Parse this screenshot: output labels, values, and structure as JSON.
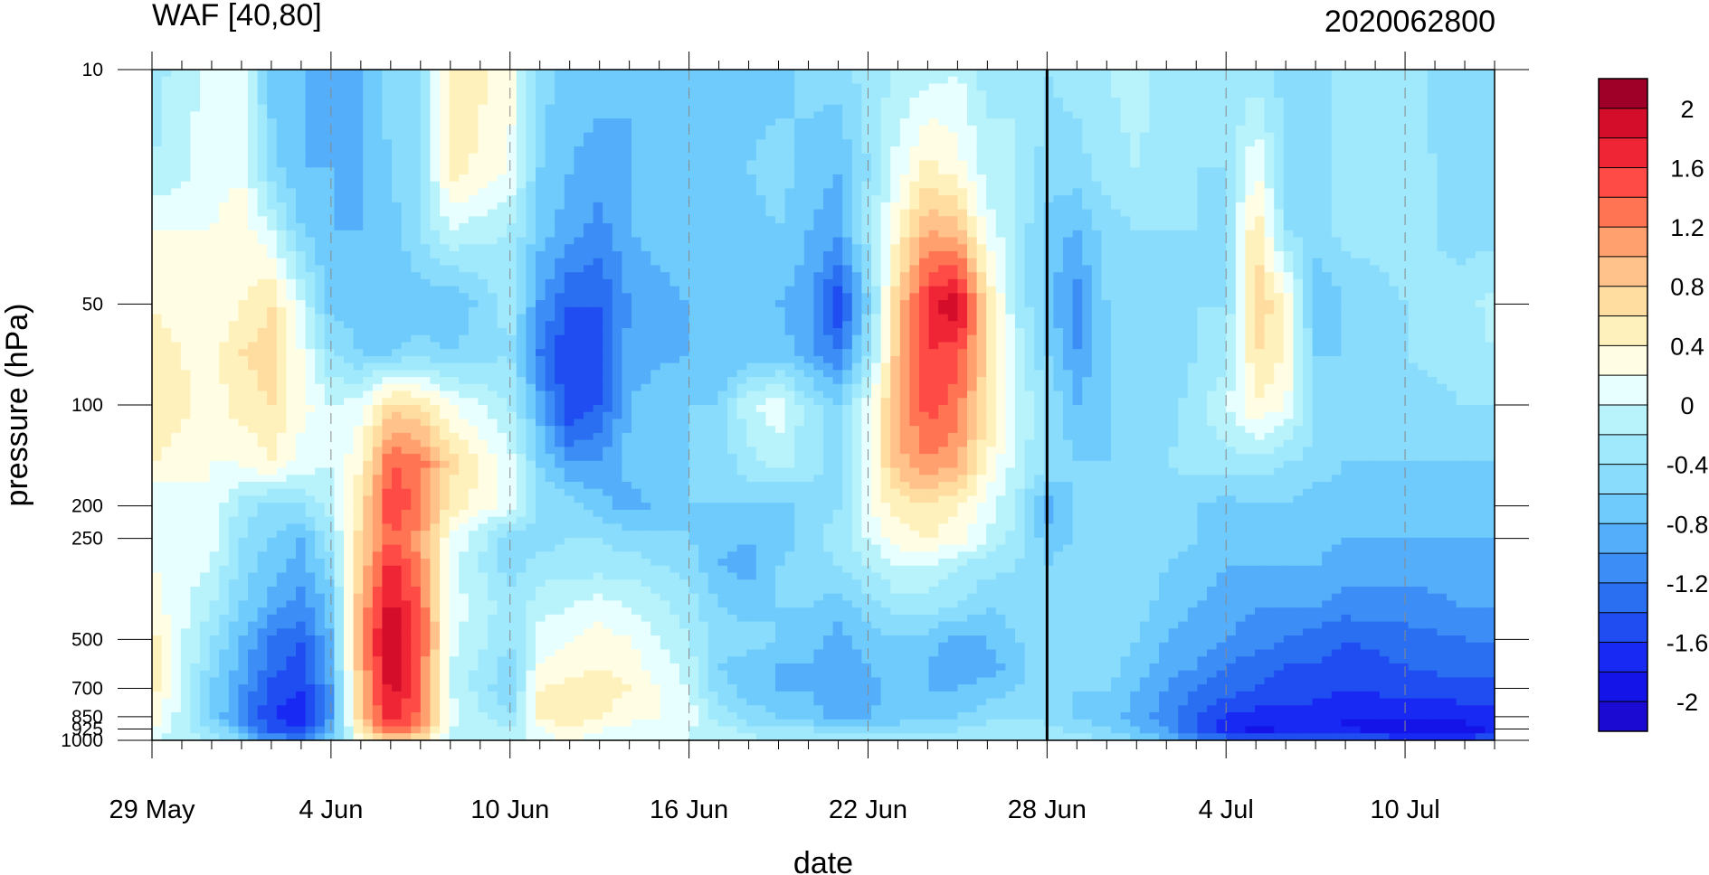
{
  "chart_data": {
    "type": "heatmap",
    "title": "WAF [40,80]",
    "subtitle": "2020062800",
    "xlabel": "date",
    "ylabel": "pressure (hPa)",
    "x_dates": [
      "29 May",
      "4 Jun",
      "10 Jun",
      "16 Jun",
      "22 Jun",
      "28 Jun",
      "4 Jul",
      "10 Jul"
    ],
    "x_range_days": [
      0,
      45
    ],
    "x_major_tick_interval_days": 6,
    "marker_date_day": 30,
    "y_ticks": [
      10,
      50,
      100,
      200,
      250,
      500,
      700,
      850,
      925,
      1000
    ],
    "y_tick_labels": [
      "10",
      "50",
      "100",
      "200",
      "250",
      "500",
      "700",
      "850",
      "925",
      "1000"
    ],
    "y_scale": "log",
    "y_range": [
      10,
      1000
    ],
    "y_inverted": true,
    "colorbar": {
      "labels": [
        "2",
        "1.6",
        "1.2",
        "0.8",
        "0.4",
        "0",
        "-0.4",
        "-0.8",
        "-1.2",
        "-1.6",
        "-2"
      ],
      "min": -2.2,
      "max": 2.2,
      "step": 0.2,
      "colors": [
        "#9e0027",
        "#d40d2b",
        "#ef2535",
        "#ff4b46",
        "#ff7554",
        "#ffa06e",
        "#ffc28b",
        "#ffdc9f",
        "#fff1bc",
        "#fffde3",
        "#e8ffff",
        "#b8f2fa",
        "#a0e9fc",
        "#8adcfc",
        "#6ecbfc",
        "#55aefa",
        "#3c8ef6",
        "#2a6ff2",
        "#1f4df2",
        "#1729f2",
        "#1414e8",
        "#1a0ad2"
      ]
    },
    "grid_values": {
      "levels": [
        10,
        20,
        30,
        50,
        70,
        100,
        150,
        200,
        250,
        300,
        400,
        500,
        600,
        700,
        850,
        925,
        1000
      ],
      "days": [
        0,
        2,
        3,
        4,
        5,
        6,
        7,
        8,
        9,
        10,
        12,
        13,
        14,
        15,
        16,
        18,
        19,
        20,
        21,
        22,
        23,
        24,
        25,
        26,
        27,
        28,
        29,
        30,
        31,
        32,
        33,
        34,
        35,
        36,
        37,
        38,
        39,
        40,
        42,
        44,
        45
      ],
      "values": [
        [
          -0.3,
          0.1,
          0.1,
          -0.7,
          -0.8,
          -0.9,
          -0.8,
          -0.5,
          -0.5,
          0.6,
          0.3,
          -0.5,
          -0.7,
          -0.7,
          -0.8,
          -0.8,
          -0.7,
          -0.7,
          -0.7,
          -0.5,
          -0.5,
          -0.3,
          -0.2,
          -0.1,
          0.0,
          -0.3,
          -0.2,
          -0.4,
          -0.3,
          -0.2,
          -0.1,
          -0.3,
          -0.3,
          -0.3,
          -0.3,
          -0.5,
          -0.6,
          -0.3,
          -0.3,
          -0.6,
          -0.6
        ],
        [
          -0.2,
          0.1,
          0.2,
          -0.5,
          -0.8,
          -0.8,
          -0.8,
          -0.6,
          -0.4,
          0.5,
          0.2,
          -0.6,
          -0.8,
          -0.9,
          -0.8,
          -0.7,
          -0.6,
          -0.6,
          -0.5,
          -0.7,
          -0.8,
          -0.4,
          0.1,
          0.5,
          0.3,
          -0.1,
          -0.2,
          -0.5,
          -0.5,
          -0.3,
          -0.2,
          -0.3,
          -0.4,
          -0.4,
          0.2,
          -0.4,
          -0.5,
          -0.3,
          -0.3,
          -0.5,
          -0.6
        ],
        [
          0.2,
          0.2,
          0.3,
          0.0,
          -0.6,
          -0.8,
          -0.8,
          -0.7,
          -0.4,
          0.0,
          -0.2,
          -0.7,
          -0.9,
          -1.1,
          -0.8,
          -0.6,
          -0.6,
          -0.7,
          -0.6,
          -0.8,
          -0.9,
          -0.3,
          0.4,
          1.0,
          0.9,
          0.1,
          -0.2,
          -0.7,
          -0.8,
          -0.5,
          -0.4,
          -0.4,
          -0.4,
          -0.4,
          0.6,
          -0.4,
          -0.5,
          -0.3,
          -0.3,
          -0.5,
          -0.5
        ],
        [
          0.4,
          0.2,
          0.4,
          0.6,
          0.0,
          -0.7,
          -0.7,
          -0.8,
          -0.7,
          -0.8,
          -0.3,
          -1.0,
          -1.4,
          -1.4,
          -1.0,
          -0.8,
          -0.7,
          -0.8,
          -0.8,
          -0.9,
          -1.6,
          -0.6,
          0.8,
          1.7,
          2.0,
          0.6,
          -0.2,
          -0.7,
          -1.1,
          -0.6,
          -0.5,
          -0.6,
          -0.4,
          -0.4,
          0.8,
          0.4,
          -0.8,
          -0.6,
          -0.4,
          -0.3,
          -0.1
        ],
        [
          0.5,
          0.3,
          0.6,
          0.7,
          0.2,
          -0.4,
          -0.6,
          -0.6,
          -0.5,
          -0.6,
          -0.4,
          -1.2,
          -1.6,
          -1.5,
          -0.9,
          -0.8,
          -0.8,
          -0.8,
          -0.7,
          -0.9,
          -1.2,
          -0.4,
          0.9,
          1.6,
          1.5,
          0.7,
          -0.1,
          -0.6,
          -1.0,
          -0.6,
          -0.5,
          -0.6,
          -0.4,
          -0.3,
          0.6,
          0.4,
          -0.6,
          -0.6,
          -0.4,
          -0.3,
          -0.2
        ],
        [
          0.6,
          0.3,
          0.5,
          0.6,
          0.3,
          0.0,
          0.1,
          0.7,
          0.6,
          0.2,
          -0.2,
          -0.9,
          -1.6,
          -1.4,
          -0.8,
          -0.6,
          -0.6,
          0.0,
          0.1,
          -0.3,
          -0.6,
          0.1,
          1.0,
          1.5,
          1.3,
          0.6,
          0.0,
          -0.4,
          -0.8,
          -0.6,
          -0.5,
          -0.5,
          -0.3,
          0.0,
          0.4,
          0.2,
          -0.4,
          -0.6,
          -0.5,
          -0.4,
          -0.4
        ],
        [
          0.4,
          0.2,
          0.2,
          0.4,
          0.1,
          0.0,
          0.4,
          1.4,
          1.3,
          0.7,
          0.1,
          -0.6,
          -1.0,
          -1.0,
          -0.7,
          -0.6,
          -0.5,
          -0.3,
          -0.1,
          -0.3,
          -0.5,
          0.2,
          0.9,
          1.2,
          1.0,
          0.4,
          -0.1,
          -0.4,
          -0.6,
          -0.6,
          -0.5,
          -0.4,
          -0.3,
          -0.3,
          -0.3,
          -0.4,
          -0.5,
          -0.6,
          -0.6,
          -0.6,
          -0.6
        ],
        [
          0.0,
          0.2,
          -0.3,
          -0.5,
          -0.4,
          -0.1,
          0.6,
          1.6,
          1.3,
          0.5,
          0.1,
          -0.4,
          -0.5,
          -0.7,
          -0.9,
          -0.6,
          -0.6,
          -0.6,
          -0.7,
          -0.5,
          -0.4,
          0.2,
          0.5,
          0.6,
          0.4,
          0.1,
          -0.2,
          -0.9,
          -0.6,
          -0.5,
          -0.5,
          -0.5,
          -0.6,
          -0.7,
          -0.6,
          -0.6,
          -0.7,
          -0.7,
          -0.7,
          -0.7,
          -0.7
        ],
        [
          0.2,
          0.1,
          -0.4,
          -0.6,
          -0.8,
          -0.3,
          0.7,
          1.4,
          1.1,
          0.2,
          -0.5,
          -0.5,
          -0.4,
          -0.4,
          -0.5,
          -0.6,
          -0.7,
          -0.8,
          -0.7,
          -0.5,
          -0.3,
          0.0,
          0.3,
          0.4,
          0.3,
          0.0,
          -0.3,
          -0.7,
          -0.6,
          -0.5,
          -0.4,
          -0.5,
          -0.6,
          -0.7,
          -0.6,
          -0.7,
          -0.7,
          -0.8,
          -0.8,
          -0.8,
          -0.8
        ],
        [
          0.2,
          0.0,
          -0.5,
          -0.7,
          -0.9,
          -0.5,
          0.8,
          1.7,
          1.2,
          0.1,
          -0.5,
          -0.3,
          -0.3,
          -0.3,
          -0.3,
          -0.5,
          -0.8,
          -0.9,
          -0.6,
          -0.5,
          -0.4,
          -0.2,
          0.0,
          0.0,
          -0.2,
          -0.3,
          -0.4,
          -0.6,
          -0.5,
          -0.4,
          -0.4,
          -0.6,
          -0.7,
          -0.8,
          -0.8,
          -0.8,
          -0.8,
          -0.9,
          -0.9,
          -0.9,
          -0.9
        ],
        [
          0.3,
          -0.2,
          -0.6,
          -0.9,
          -1.1,
          -0.7,
          1.0,
          1.9,
          1.4,
          0.1,
          -0.3,
          -0.1,
          0.0,
          0.1,
          0.0,
          -0.3,
          -0.6,
          -0.7,
          -0.6,
          -0.6,
          -0.7,
          -0.5,
          -0.3,
          -0.3,
          -0.4,
          -0.6,
          -0.5,
          -0.5,
          -0.4,
          -0.4,
          -0.5,
          -0.7,
          -0.8,
          -0.9,
          -1.0,
          -1.0,
          -1.0,
          -1.1,
          -1.1,
          -1.0,
          -1.0
        ],
        [
          0.5,
          -0.4,
          -0.8,
          -1.2,
          -1.4,
          -0.8,
          1.1,
          2.1,
          1.5,
          0.1,
          -0.4,
          0.1,
          0.2,
          0.3,
          0.2,
          -0.2,
          -0.5,
          -0.5,
          -0.6,
          -0.7,
          -0.9,
          -0.7,
          -0.6,
          -0.7,
          -0.9,
          -0.8,
          -0.6,
          -0.4,
          -0.4,
          -0.4,
          -0.6,
          -0.8,
          -0.9,
          -1.0,
          -1.1,
          -1.2,
          -1.3,
          -1.4,
          -1.3,
          -1.2,
          -1.2
        ],
        [
          0.6,
          -0.5,
          -0.9,
          -1.3,
          -1.5,
          -0.9,
          1.0,
          2.0,
          1.4,
          0.0,
          -0.5,
          0.2,
          0.3,
          0.4,
          0.3,
          -0.1,
          -0.6,
          -0.7,
          -0.8,
          -0.8,
          -1.0,
          -0.8,
          -0.7,
          -0.8,
          -0.9,
          -0.9,
          -0.7,
          -0.4,
          -0.5,
          -0.5,
          -0.7,
          -0.9,
          -1.0,
          -1.2,
          -1.3,
          -1.4,
          -1.4,
          -1.5,
          -1.4,
          -1.3,
          -1.3
        ],
        [
          0.5,
          -0.6,
          -1.0,
          -1.5,
          -1.6,
          -1.0,
          0.9,
          1.9,
          1.4,
          0.0,
          -0.6,
          0.4,
          0.5,
          0.5,
          0.4,
          0.0,
          -0.5,
          -0.7,
          -0.8,
          -0.8,
          -1.0,
          -0.9,
          -0.7,
          -0.8,
          -0.8,
          -0.7,
          -0.6,
          -0.5,
          -0.6,
          -0.6,
          -0.8,
          -1.0,
          -1.2,
          -1.3,
          -1.4,
          -1.5,
          -1.5,
          -1.6,
          -1.5,
          -1.5,
          -1.5
        ],
        [
          0.4,
          -0.6,
          -1.1,
          -1.6,
          -1.7,
          -1.0,
          0.8,
          1.8,
          1.3,
          0.1,
          -0.4,
          0.4,
          0.6,
          0.4,
          0.3,
          0.1,
          -0.3,
          -0.5,
          -0.6,
          -0.7,
          -0.9,
          -0.8,
          -0.7,
          -0.7,
          -0.6,
          -0.5,
          -0.5,
          -0.5,
          -0.6,
          -0.7,
          -0.9,
          -1.1,
          -1.4,
          -1.6,
          -1.7,
          -1.7,
          -1.7,
          -1.8,
          -1.8,
          -1.7,
          -1.7
        ],
        [
          0.2,
          -0.4,
          -0.9,
          -1.5,
          -1.6,
          -0.9,
          0.6,
          1.5,
          1.1,
          0.0,
          -0.2,
          0.2,
          0.4,
          0.2,
          0.1,
          0.0,
          -0.1,
          -0.3,
          -0.4,
          -0.4,
          -0.6,
          -0.5,
          -0.5,
          -0.5,
          -0.4,
          -0.3,
          -0.3,
          -0.3,
          -0.5,
          -0.6,
          -0.8,
          -1.0,
          -1.4,
          -1.7,
          -1.9,
          -1.8,
          -1.8,
          -1.8,
          -1.9,
          -1.9,
          -1.8
        ],
        [
          0.0,
          -0.2,
          -0.6,
          -1.0,
          -1.1,
          -0.6,
          0.3,
          0.8,
          0.6,
          0.0,
          -0.1,
          0.1,
          0.2,
          0.1,
          0.1,
          0.0,
          0.0,
          -0.1,
          -0.2,
          -0.2,
          -0.3,
          -0.3,
          -0.3,
          -0.3,
          -0.2,
          -0.2,
          -0.2,
          -0.2,
          -0.3,
          -0.4,
          -0.6,
          -0.8,
          -1.1,
          -1.3,
          -1.4,
          -1.4,
          -1.4,
          -1.4,
          -1.5,
          -1.5,
          -1.4
        ]
      ]
    }
  }
}
